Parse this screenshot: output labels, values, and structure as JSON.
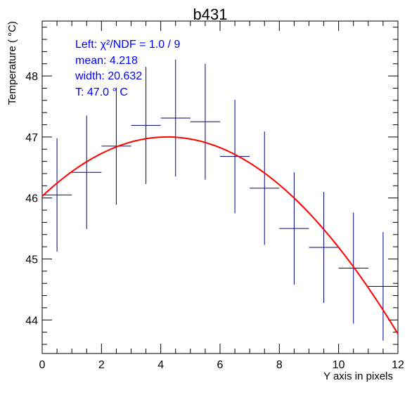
{
  "chart_data": {
    "type": "scatter",
    "title": "b431",
    "xlabel": "Y axis in pixels",
    "ylabel": "Temperature ( °C)",
    "xlim": [
      0,
      12
    ],
    "ylim": [
      43.45,
      48.9
    ],
    "grid": false,
    "x_ticks": [
      0,
      2,
      4,
      6,
      8,
      10,
      12
    ],
    "y_ticks": [
      44,
      45,
      46,
      47,
      48
    ],
    "series": [
      {
        "points": [
          {
            "x": 0.5,
            "xerr": 0.5,
            "y": 46.05,
            "yerr": 0.93
          },
          {
            "x": 1.5,
            "xerr": 0.5,
            "y": 46.42,
            "yerr": 0.93
          },
          {
            "x": 2.5,
            "xerr": 0.5,
            "y": 46.85,
            "yerr": 0.96
          },
          {
            "x": 3.5,
            "xerr": 0.5,
            "y": 47.19,
            "yerr": 0.96
          },
          {
            "x": 4.5,
            "xerr": 0.5,
            "y": 47.31,
            "yerr": 0.96
          },
          {
            "x": 5.5,
            "xerr": 0.5,
            "y": 47.25,
            "yerr": 0.95
          },
          {
            "x": 6.5,
            "xerr": 0.5,
            "y": 46.68,
            "yerr": 0.93
          },
          {
            "x": 7.5,
            "xerr": 0.5,
            "y": 46.16,
            "yerr": 0.93
          },
          {
            "x": 8.5,
            "xerr": 0.5,
            "y": 45.5,
            "yerr": 0.92
          },
          {
            "x": 9.5,
            "xerr": 0.5,
            "y": 45.19,
            "yerr": 0.91
          },
          {
            "x": 10.5,
            "xerr": 0.5,
            "y": 44.85,
            "yerr": 0.91
          },
          {
            "x": 11.5,
            "xerr": 0.5,
            "y": 44.55,
            "yerr": 0.89
          }
        ]
      }
    ],
    "fit_curve": {
      "amplitude": 47.0,
      "mean": 4.218,
      "width": 20.632,
      "x_range": [
        0,
        12
      ]
    },
    "stats_box": {
      "lines": [
        "Left: χ²/NDF = 1.0 / 9",
        "mean: 4.218",
        "width: 20.632",
        "T: 47.0  ° C"
      ]
    },
    "colors": {
      "points": "#00008b",
      "fit": "#ff0000",
      "stats_text": "#0000ff",
      "axes": "#000000"
    }
  }
}
